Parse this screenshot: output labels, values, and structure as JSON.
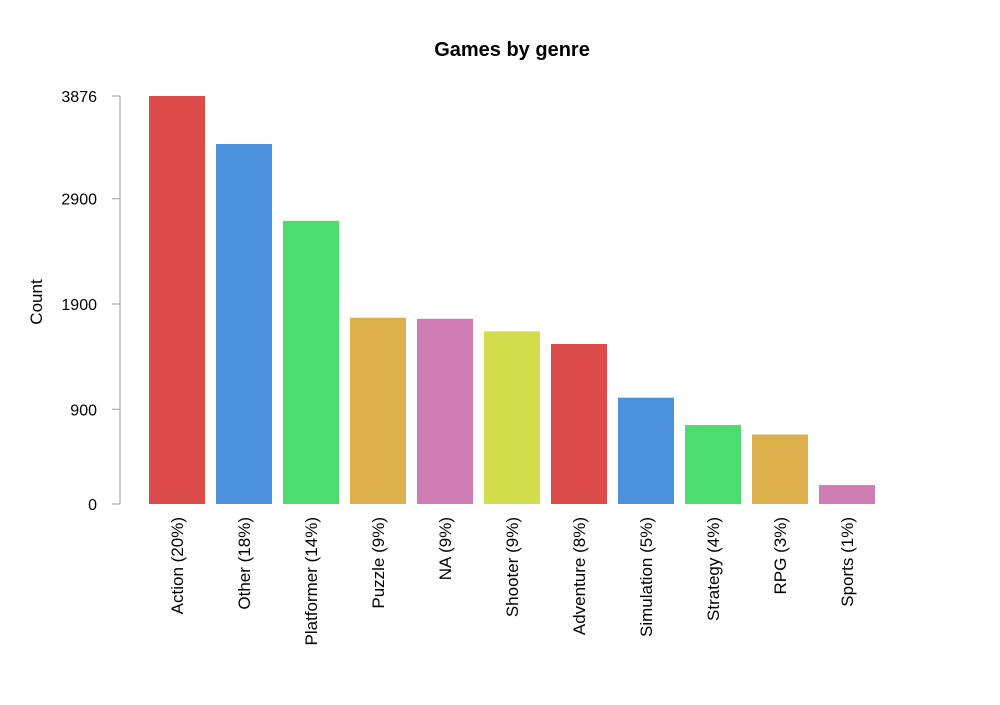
{
  "chart_data": {
    "type": "bar",
    "title": "Games by genre",
    "xlabel": "",
    "ylabel": "Count",
    "categories": [
      "Action (20%)",
      "Other (18%)",
      "Platformer (14%)",
      "Puzzle (9%)",
      "NA (9%)",
      "Shooter (9%)",
      "Adventure (8%)",
      "Simulation (5%)",
      "Strategy (4%)",
      "RPG (3%)",
      "Sports (1%)"
    ],
    "values": [
      3876,
      3420,
      2690,
      1770,
      1760,
      1640,
      1520,
      1010,
      750,
      660,
      180
    ],
    "colors": [
      "#dd4b4b",
      "#4b91dd",
      "#4bdd70",
      "#ddb04b",
      "#d07db5",
      "#d1dd4b",
      "#dd4b4b",
      "#4b91dd",
      "#4bdd70",
      "#ddb04b",
      "#d07db5"
    ],
    "yticks": [
      0,
      900,
      1900,
      2900,
      3876
    ],
    "ylim": [
      0,
      3876
    ],
    "grid": false,
    "legend": "none"
  }
}
